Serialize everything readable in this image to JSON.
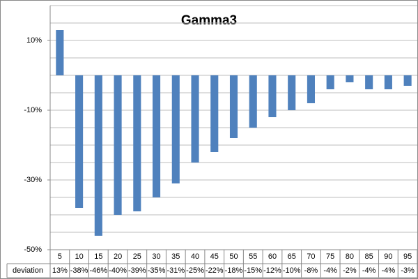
{
  "chart_data": {
    "type": "bar",
    "title": "Gamma3",
    "categories": [
      "5",
      "10",
      "15",
      "20",
      "25",
      "30",
      "35",
      "40",
      "45",
      "50",
      "55",
      "60",
      "65",
      "70",
      "75",
      "80",
      "85",
      "90",
      "95"
    ],
    "series": [
      {
        "name": "deviation",
        "color": "#4f81bd",
        "values": [
          13,
          -38,
          -46,
          -40,
          -39,
          -35,
          -31,
          -25,
          -22,
          -18,
          -15,
          -12,
          -10,
          -8,
          -4,
          -2,
          -4,
          -4,
          -3
        ],
        "value_labels": [
          "13%",
          "-38%",
          "-46%",
          "-40%",
          "-39%",
          "-35%",
          "-31%",
          "-25%",
          "-22%",
          "-18%",
          "-15%",
          "-12%",
          "-10%",
          "-8%",
          "-4%",
          "-2%",
          "-4%",
          "-4%",
          "-3%"
        ]
      }
    ],
    "ylim": [
      -50,
      20
    ],
    "yticks": [
      {
        "value": 10,
        "label": "10%"
      },
      {
        "value": -10,
        "label": "-10%"
      },
      {
        "value": -30,
        "label": "-30%"
      },
      {
        "value": -50,
        "label": "-50%"
      }
    ],
    "grid_yticks": [
      20,
      15,
      10,
      5,
      0,
      -5,
      -10,
      -15,
      -20,
      -25,
      -30,
      -35,
      -40,
      -45,
      -50
    ],
    "grid": true,
    "data_table": true
  }
}
